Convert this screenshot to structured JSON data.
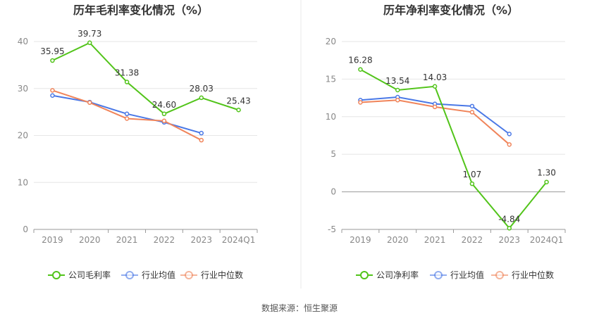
{
  "chart_data": [
    {
      "type": "line",
      "title": "历年毛利率变化情况（%）",
      "categories": [
        "2019",
        "2020",
        "2021",
        "2022",
        "2023",
        "2024Q1"
      ],
      "ylim": [
        0,
        40
      ],
      "yticks": [
        0,
        10,
        20,
        30,
        40
      ],
      "grid": true,
      "legend_position": "bottom",
      "series": [
        {
          "name": "公司毛利率",
          "color": "#52c41a",
          "values": [
            35.95,
            39.73,
            31.38,
            24.6,
            28.03,
            25.43
          ],
          "labels": [
            "35.95",
            "39.73",
            "31.38",
            "24.60",
            "28.03",
            "25.43"
          ]
        },
        {
          "name": "行业均值",
          "color": "#4a78e6",
          "values": [
            28.5,
            27.1,
            24.6,
            22.8,
            20.5,
            null
          ]
        },
        {
          "name": "行业中位数",
          "color": "#f0845a",
          "values": [
            29.6,
            27.0,
            23.6,
            23.1,
            19.0,
            null
          ]
        }
      ]
    },
    {
      "type": "line",
      "title": "历年净利率变化情况（%）",
      "categories": [
        "2019",
        "2020",
        "2021",
        "2022",
        "2023",
        "2024Q1"
      ],
      "ylim": [
        -5,
        20
      ],
      "yticks": [
        -5,
        0,
        5,
        10,
        15,
        20
      ],
      "grid": true,
      "legend_position": "bottom",
      "series": [
        {
          "name": "公司净利率",
          "color": "#52c41a",
          "values": [
            16.28,
            13.54,
            14.03,
            1.07,
            -4.84,
            1.3
          ],
          "labels": [
            "16.28",
            "13.54",
            "14.03",
            "1.07",
            "-4.84",
            "1.30"
          ]
        },
        {
          "name": "行业均值",
          "color": "#4a78e6",
          "values": [
            12.2,
            12.6,
            11.7,
            11.4,
            7.7,
            null
          ]
        },
        {
          "name": "行业中位数",
          "color": "#f0845a",
          "values": [
            11.9,
            12.2,
            11.3,
            10.6,
            6.3,
            null
          ]
        }
      ]
    }
  ],
  "footer": {
    "source": "数据来源：恒生聚源"
  }
}
